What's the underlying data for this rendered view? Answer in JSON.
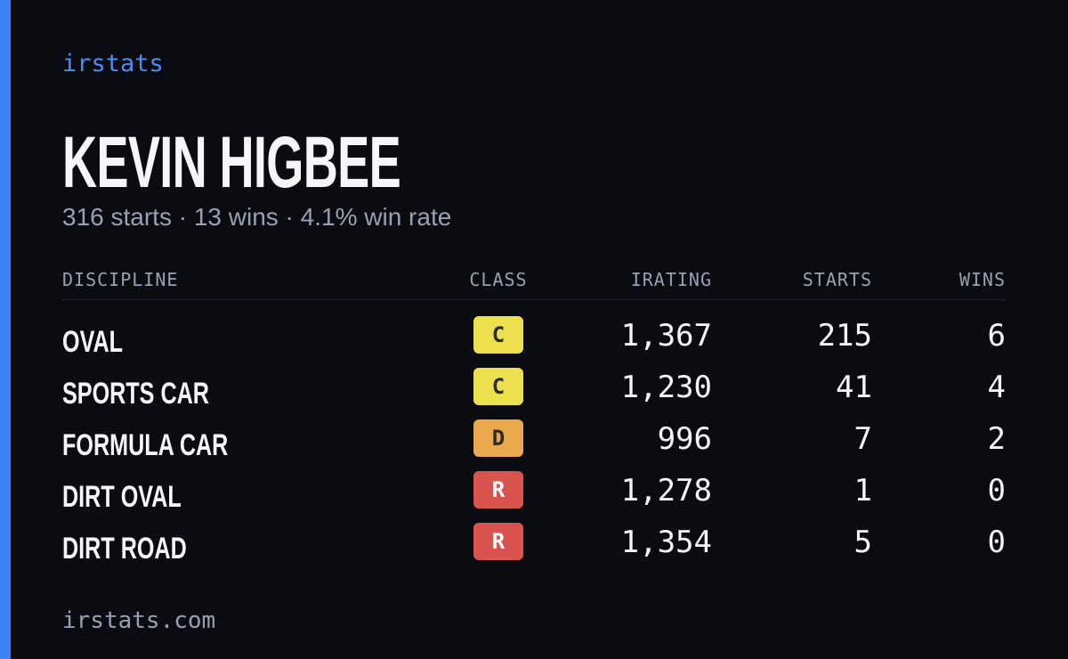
{
  "brand": "irstats",
  "profile": {
    "name": "KEVIN HIGBEE",
    "summary": "316 starts · 13 wins · 4.1% win rate"
  },
  "table": {
    "headers": [
      "DISCIPLINE",
      "CLASS",
      "IRATING",
      "STARTS",
      "WINS"
    ],
    "rows": [
      {
        "discipline": "OVAL",
        "class": "C",
        "class_color": "#ede04f",
        "irating": "1,367",
        "starts": "215",
        "wins": "6"
      },
      {
        "discipline": "SPORTS CAR",
        "class": "C",
        "class_color": "#ede04f",
        "irating": "1,230",
        "starts": "41",
        "wins": "4"
      },
      {
        "discipline": "FORMULA CAR",
        "class": "D",
        "class_color": "#e9a84b",
        "irating": "996",
        "starts": "7",
        "wins": "2"
      },
      {
        "discipline": "DIRT OVAL",
        "class": "R",
        "class_color": "#d9534f",
        "irating": "1,278",
        "starts": "1",
        "wins": "0"
      },
      {
        "discipline": "DIRT ROAD",
        "class": "R",
        "class_color": "#d9534f",
        "irating": "1,354",
        "starts": "5",
        "wins": "0"
      }
    ]
  },
  "footer": "irstats.com"
}
